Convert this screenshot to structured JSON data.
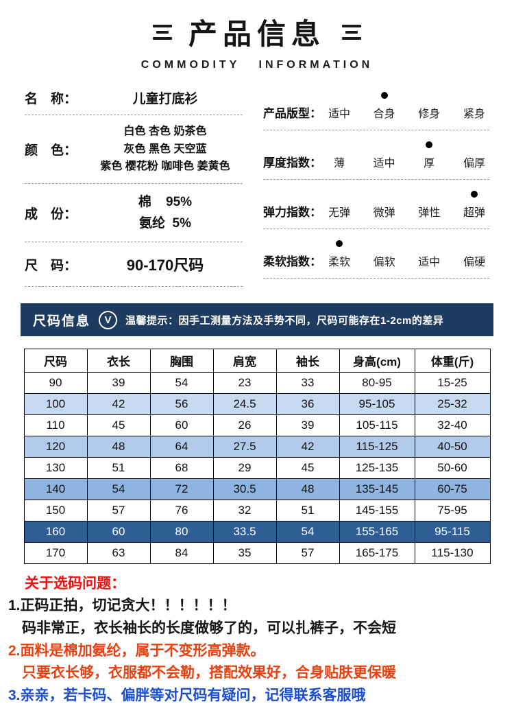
{
  "header": {
    "title": "产品信息",
    "subtitle": "COMMODITY INFORMATION"
  },
  "specs": {
    "name": {
      "label": "名　称：",
      "value": "儿童打底衫"
    },
    "color": {
      "label": "颜　色：",
      "lines": [
        "白色 杏色 奶茶色",
        "灰色 黑色 天空蓝",
        "紫色 樱花粉 咖啡色 姜黄色"
      ]
    },
    "composition": {
      "label": "成　份：",
      "lines": [
        "棉    95%",
        "氨纶  5%"
      ]
    },
    "size": {
      "label": "尺　码：",
      "value": "90-170尺码"
    }
  },
  "indices": [
    {
      "label": "产品版型：",
      "options": [
        "适中",
        "合身",
        "修身",
        "紧身"
      ],
      "selected": 1
    },
    {
      "label": "厚度指数：",
      "options": [
        "薄",
        "适中",
        "厚",
        "偏厚"
      ],
      "selected": 2
    },
    {
      "label": "弹力指数：",
      "options": [
        "无弹",
        "微弹",
        "弹性",
        "超弹"
      ],
      "selected": 3
    },
    {
      "label": "柔软指数：",
      "options": [
        "柔软",
        "偏软",
        "适中",
        "偏硬"
      ],
      "selected": 0
    }
  ],
  "size_banner": {
    "title": "尺码信息",
    "icon": "V",
    "tip": "温馨提示：因手工测量方法及手势不同，尺码可能存在1-2cm的差异"
  },
  "size_table": {
    "headers": [
      "尺码",
      "衣长",
      "胸围",
      "肩宽",
      "袖长",
      "身高(cm)",
      "体重(斤)"
    ],
    "rows": [
      {
        "cells": [
          "90",
          "39",
          "54",
          "23",
          "33",
          "80-95",
          "15-25"
        ],
        "bg": "#ffffff",
        "fg": "#111111"
      },
      {
        "cells": [
          "100",
          "42",
          "56",
          "24.5",
          "36",
          "95-105",
          "25-32"
        ],
        "bg": "#c8daf2",
        "fg": "#111111"
      },
      {
        "cells": [
          "110",
          "45",
          "60",
          "26",
          "39",
          "105-115",
          "32-40"
        ],
        "bg": "#ffffff",
        "fg": "#111111"
      },
      {
        "cells": [
          "120",
          "48",
          "64",
          "27.5",
          "42",
          "115-125",
          "40-50"
        ],
        "bg": "#b3cbea",
        "fg": "#111111"
      },
      {
        "cells": [
          "130",
          "51",
          "68",
          "29",
          "45",
          "125-135",
          "50-60"
        ],
        "bg": "#ffffff",
        "fg": "#111111"
      },
      {
        "cells": [
          "140",
          "54",
          "72",
          "30.5",
          "48",
          "135-145",
          "60-75"
        ],
        "bg": "#8fb4df",
        "fg": "#111111"
      },
      {
        "cells": [
          "150",
          "57",
          "76",
          "32",
          "51",
          "145-155",
          "75-95"
        ],
        "bg": "#ffffff",
        "fg": "#111111"
      },
      {
        "cells": [
          "160",
          "60",
          "80",
          "33.5",
          "54",
          "155-165",
          "95-115"
        ],
        "bg": "#2f5e95",
        "fg": "#ffffff"
      },
      {
        "cells": [
          "170",
          "63",
          "84",
          "35",
          "57",
          "165-175",
          "115-130"
        ],
        "bg": "#ffffff",
        "fg": "#111111"
      }
    ]
  },
  "notes": {
    "title": "关于选码问题：",
    "lines": [
      {
        "text": "1.正码正拍，切记贪大！！！！！！",
        "color": "#151515",
        "indent": false
      },
      {
        "text": "码非常正，衣长袖长的长度做够了的，可以扎裤子，不会短",
        "color": "#151515",
        "indent": true
      },
      {
        "text": "2.面料是棉加氨纶，属于不变形高弹款。",
        "color": "#e8400e",
        "indent": false
      },
      {
        "text": "只要衣长够，衣服都不会勒，搭配效果好，合身贴肤更保暖",
        "color": "#e8400e",
        "indent": true
      },
      {
        "text": "3.亲亲，若卡码、偏胖等对尺码有疑问，记得联系客服哦",
        "color": "#1b4ed0",
        "indent": false
      }
    ]
  },
  "colors": {
    "banner_bg": "#1e3b60",
    "notes_title_red": "#f20d0d"
  }
}
